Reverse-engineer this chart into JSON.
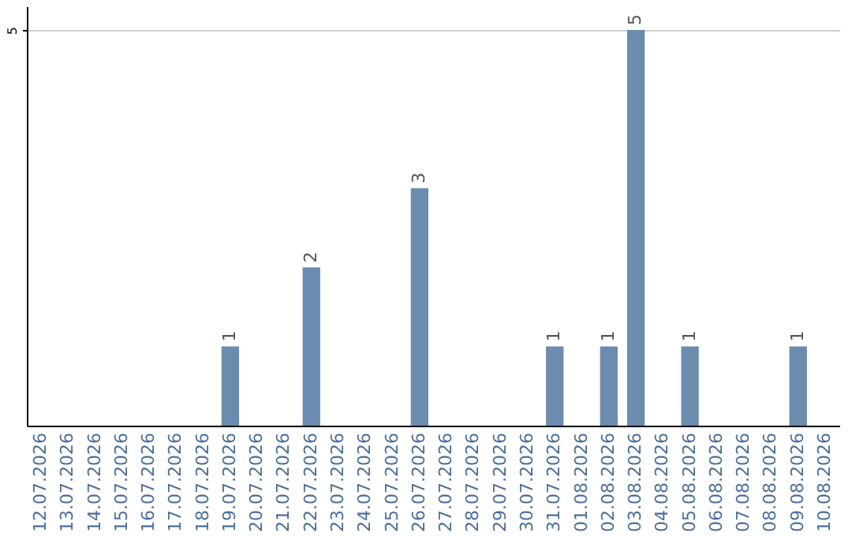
{
  "chart_data": {
    "type": "bar",
    "categories": [
      "12.07.2026",
      "13.07.2026",
      "14.07.2026",
      "15.07.2026",
      "16.07.2026",
      "17.07.2026",
      "18.07.2026",
      "19.07.2026",
      "20.07.2026",
      "21.07.2026",
      "22.07.2026",
      "23.07.2026",
      "24.07.2026",
      "25.07.2026",
      "26.07.2026",
      "27.07.2026",
      "28.07.2026",
      "29.07.2026",
      "30.07.2026",
      "31.07.2026",
      "01.08.2026",
      "02.08.2026",
      "03.08.2026",
      "04.08.2026",
      "05.08.2026",
      "06.08.2026",
      "07.08.2026",
      "08.08.2026",
      "09.08.2026",
      "10.08.2026"
    ],
    "values": [
      null,
      null,
      null,
      null,
      null,
      null,
      null,
      1,
      null,
      null,
      2,
      null,
      null,
      null,
      3,
      null,
      null,
      null,
      null,
      1,
      null,
      1,
      5,
      null,
      1,
      null,
      null,
      null,
      1,
      null
    ],
    "color": "#6b8cae",
    "ylim": [
      0,
      5.3
    ],
    "yticks": [
      5
    ],
    "grid": "y",
    "data_labels": true
  }
}
